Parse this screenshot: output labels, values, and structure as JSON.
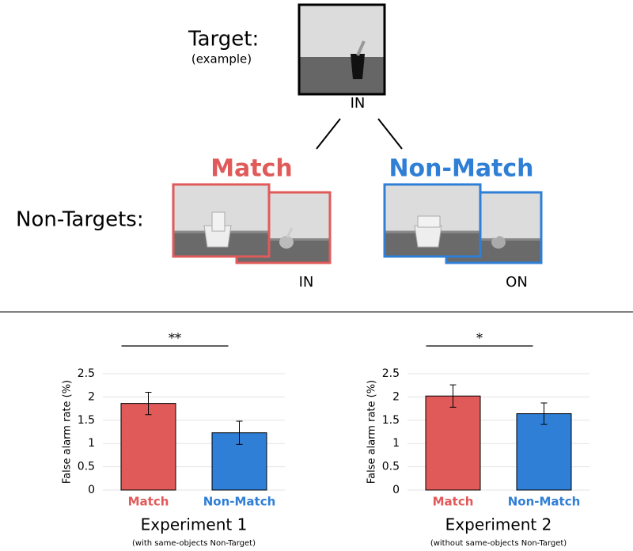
{
  "diagram": {
    "target_label": "Target:",
    "target_note": "(example)",
    "target_relation": "IN",
    "match_label": "Match",
    "nonmatch_label": "Non-Match",
    "nontargets_label": "Non-Targets:",
    "match_relation": "IN",
    "nonmatch_relation": "ON"
  },
  "chart_data": [
    {
      "type": "bar",
      "title": "Experiment 1",
      "subtitle": "(with same-objects Non-Target)",
      "y_label": "False alarm rate (%)",
      "categories": [
        "Match",
        "Non-Match"
      ],
      "values": [
        1.86,
        1.23
      ],
      "errors": [
        0.24,
        0.25
      ],
      "colors": [
        "#e05a5a",
        "#2f7fd6"
      ],
      "ylim": [
        0,
        2.5
      ],
      "yticks": [
        0,
        0.5,
        1,
        1.5,
        2,
        2.5
      ],
      "grid": true,
      "annotation": "**"
    },
    {
      "type": "bar",
      "title": "Experiment 2",
      "subtitle": "(without same-objects Non-Target)",
      "y_label": "False alarm rate (%)",
      "categories": [
        "Match",
        "Non-Match"
      ],
      "values": [
        2.02,
        1.64
      ],
      "errors": [
        0.24,
        0.23
      ],
      "colors": [
        "#e05a5a",
        "#2f7fd6"
      ],
      "ylim": [
        0,
        2.5
      ],
      "yticks": [
        0,
        0.5,
        1,
        1.5,
        2,
        2.5
      ],
      "grid": true,
      "annotation": "*"
    }
  ]
}
